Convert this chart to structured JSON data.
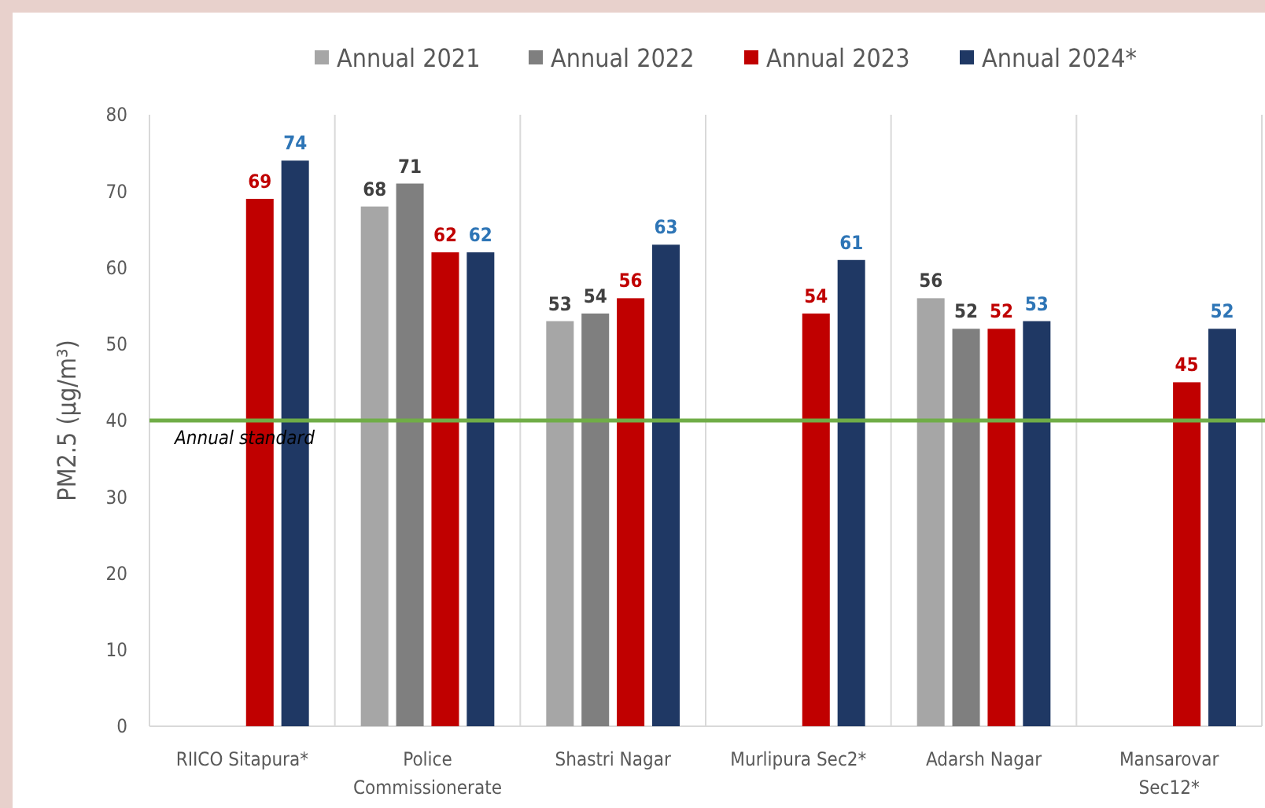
{
  "chart_data": {
    "type": "bar",
    "ylabel": "PM2.5 (µg/m³)",
    "categories": [
      "RIICO Sitapura*",
      "Police Commissionerate",
      "Shastri Nagar",
      "Murlipura Sec2*",
      "Adarsh Nagar",
      "Mansarovar Sec12*"
    ],
    "series": [
      {
        "name": "Annual 2021",
        "color": "#a6a6a6",
        "values": [
          null,
          68,
          53,
          null,
          56,
          null
        ]
      },
      {
        "name": "Annual 2022",
        "color": "#7f7f7f",
        "values": [
          null,
          71,
          54,
          null,
          52,
          null
        ]
      },
      {
        "name": "Annual 2023",
        "color": "#c00000",
        "values": [
          69,
          62,
          56,
          54,
          52,
          45
        ]
      },
      {
        "name": "Annual 2024*",
        "color": "#1f3864",
        "values": [
          74,
          62,
          63,
          61,
          53,
          52
        ]
      }
    ],
    "ylim": [
      0,
      80
    ],
    "yticks": [
      0,
      10,
      20,
      30,
      40,
      50,
      60,
      70,
      80
    ],
    "grid": "x",
    "legend": "top",
    "data_labels": true,
    "ref_lines": [
      {
        "axis": "y",
        "value": 40,
        "label": "Annual standard",
        "color": "#70ad47"
      }
    ]
  }
}
